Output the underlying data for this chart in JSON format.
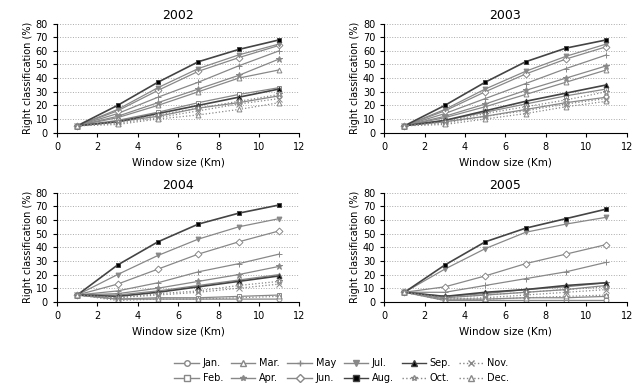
{
  "x": [
    1,
    3,
    5,
    7,
    9,
    11
  ],
  "titles": [
    "2002",
    "2003",
    "2004",
    "2005"
  ],
  "ylabel": "Right classification (%)",
  "xlabel": "Window size (Km)",
  "ylim": [
    0,
    80
  ],
  "xlim": [
    0,
    12
  ],
  "xticks": [
    0,
    2,
    4,
    6,
    8,
    10,
    12
  ],
  "yticks": [
    0,
    10,
    20,
    30,
    40,
    50,
    60,
    70,
    80
  ],
  "months": [
    "Jan.",
    "Feb.",
    "Mar.",
    "Apr.",
    "May",
    "Jun.",
    "Jul.",
    "Aug.",
    "Sep.",
    "Oct.",
    "Nov.",
    "Dec."
  ],
  "data": {
    "2002": [
      [
        5,
        8,
        12,
        18,
        22,
        27
      ],
      [
        5,
        9,
        15,
        22,
        28,
        33
      ],
      [
        5,
        11,
        20,
        30,
        40,
        46
      ],
      [
        5,
        12,
        22,
        32,
        42,
        54
      ],
      [
        5,
        14,
        26,
        37,
        49,
        60
      ],
      [
        5,
        16,
        31,
        45,
        55,
        64
      ],
      [
        5,
        17,
        33,
        47,
        57,
        65
      ],
      [
        5,
        20,
        37,
        52,
        61,
        68
      ],
      [
        5,
        8,
        14,
        20,
        26,
        32
      ],
      [
        5,
        8,
        13,
        18,
        23,
        28
      ],
      [
        5,
        7,
        11,
        16,
        21,
        25
      ],
      [
        5,
        6,
        10,
        13,
        17,
        22
      ]
    ],
    "2003": [
      [
        5,
        8,
        12,
        17,
        22,
        26
      ],
      [
        5,
        9,
        15,
        21,
        27,
        32
      ],
      [
        5,
        11,
        19,
        28,
        37,
        46
      ],
      [
        5,
        12,
        21,
        31,
        40,
        49
      ],
      [
        5,
        14,
        25,
        36,
        47,
        57
      ],
      [
        5,
        16,
        30,
        43,
        54,
        63
      ],
      [
        5,
        17,
        32,
        45,
        56,
        65
      ],
      [
        5,
        20,
        37,
        52,
        62,
        68
      ],
      [
        5,
        9,
        16,
        23,
        29,
        35
      ],
      [
        5,
        8,
        14,
        19,
        24,
        30
      ],
      [
        5,
        7,
        12,
        16,
        21,
        25
      ],
      [
        5,
        6,
        10,
        14,
        19,
        23
      ]
    ],
    "2004": [
      [
        5,
        2,
        2,
        2,
        2,
        2
      ],
      [
        5,
        2,
        3,
        3,
        4,
        5
      ],
      [
        5,
        5,
        8,
        12,
        16,
        20
      ],
      [
        5,
        6,
        10,
        15,
        20,
        26
      ],
      [
        5,
        8,
        14,
        22,
        28,
        35
      ],
      [
        5,
        13,
        24,
        35,
        44,
        52
      ],
      [
        5,
        20,
        34,
        46,
        55,
        61
      ],
      [
        5,
        27,
        44,
        57,
        65,
        71
      ],
      [
        5,
        4,
        7,
        11,
        15,
        19
      ],
      [
        5,
        3,
        6,
        8,
        12,
        15
      ],
      [
        5,
        3,
        5,
        7,
        10,
        13
      ],
      [
        5,
        1,
        2,
        2,
        3,
        4
      ]
    ],
    "2005": [
      [
        7,
        1,
        1,
        1,
        1,
        1
      ],
      [
        7,
        2,
        2,
        3,
        3,
        4
      ],
      [
        7,
        3,
        5,
        7,
        9,
        12
      ],
      [
        7,
        4,
        6,
        9,
        11,
        14
      ],
      [
        7,
        7,
        12,
        17,
        22,
        29
      ],
      [
        7,
        11,
        19,
        28,
        35,
        42
      ],
      [
        7,
        24,
        39,
        51,
        57,
        62
      ],
      [
        7,
        27,
        44,
        54,
        61,
        68
      ],
      [
        7,
        4,
        7,
        9,
        12,
        14
      ],
      [
        7,
        3,
        5,
        7,
        9,
        11
      ],
      [
        7,
        2,
        3,
        5,
        7,
        9
      ],
      [
        7,
        1,
        2,
        3,
        4,
        5
      ]
    ]
  },
  "markers": [
    "o",
    "s",
    "^",
    "*",
    "+",
    "D",
    "v",
    "s",
    "^",
    "*",
    "x",
    "^"
  ],
  "markerfacecolors": [
    "none",
    "none",
    "none",
    "gray",
    "gray",
    "none",
    "gray",
    "black",
    "black",
    "none",
    "gray",
    "none"
  ],
  "colors": [
    "#888",
    "#888",
    "#888",
    "#888",
    "#888",
    "#888",
    "#888",
    "#444",
    "#444",
    "#888",
    "#888",
    "#888"
  ],
  "linestyles": [
    "solid",
    "solid",
    "solid",
    "solid",
    "solid",
    "solid",
    "solid",
    "solid",
    "solid",
    "dotted",
    "dotted",
    "dotted"
  ],
  "linewidths": [
    0.9,
    0.9,
    0.9,
    0.9,
    0.9,
    0.9,
    0.9,
    1.2,
    1.2,
    0.9,
    0.9,
    0.9
  ],
  "markersizes": [
    3.5,
    3.5,
    3.5,
    4.5,
    4.5,
    3.5,
    3.5,
    3.5,
    3.5,
    4.5,
    4.5,
    3.5
  ]
}
